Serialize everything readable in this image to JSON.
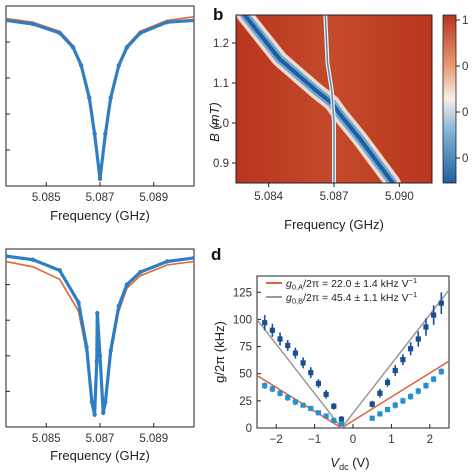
{
  "chart_data": [
    {
      "type": "line",
      "panel_label": "",
      "xlabel": "Frequency (GHz)",
      "ylabel": "",
      "xlim": [
        5.0835,
        5.0905
      ],
      "ylim": [
        0.0,
        1.0
      ],
      "x_ticks": [
        "5.085",
        "5.087",
        "5.089"
      ],
      "series": [
        {
          "color": "#e0633a",
          "x": [
            5.0835,
            5.0845,
            5.0855,
            5.086,
            5.0863,
            5.0866,
            5.0868,
            5.087,
            5.0872,
            5.0874,
            5.0877,
            5.088,
            5.0885,
            5.0895,
            5.0905
          ],
          "y": [
            0.93,
            0.91,
            0.86,
            0.78,
            0.68,
            0.5,
            0.3,
            0.05,
            0.3,
            0.5,
            0.68,
            0.78,
            0.86,
            0.92,
            0.94
          ]
        },
        {
          "color": "#2e7ec4",
          "x": [
            5.0835,
            5.0845,
            5.0855,
            5.086,
            5.0863,
            5.0866,
            5.0868,
            5.087,
            5.0872,
            5.0874,
            5.0877,
            5.088,
            5.0885,
            5.0895,
            5.0905
          ],
          "y": [
            0.92,
            0.9,
            0.85,
            0.77,
            0.67,
            0.49,
            0.29,
            0.04,
            0.29,
            0.49,
            0.67,
            0.77,
            0.85,
            0.91,
            0.92
          ]
        }
      ]
    },
    {
      "type": "heatmap",
      "panel_label": "b",
      "xlabel": "Frequency (GHz)",
      "ylabel": "B (mT)",
      "xlim": [
        5.0825,
        5.0915
      ],
      "ylim": [
        0.85,
        1.27
      ],
      "x_ticks": [
        "5.084",
        "5.087",
        "5.090"
      ],
      "y_ticks": [
        "0.9",
        "1.0",
        "1.1",
        "1.2"
      ],
      "colorbar_ticks": [
        "1",
        "0",
        "0",
        "0"
      ],
      "colors": {
        "high": "#b8321f",
        "mid": "#f6efe8",
        "low": "#1f5f9f"
      },
      "branches": [
        {
          "name": "",
          "points": [
            [
              5.0829,
              1.27
            ],
            [
              5.0845,
              1.16
            ],
            [
              5.0862,
              1.08
            ],
            [
              5.0869,
              1.05
            ],
            [
              5.0873,
              1.02
            ],
            [
              5.0882,
              0.96
            ],
            [
              5.0897,
              0.85
            ]
          ]
        },
        {
          "name": "",
          "points": [
            [
              5.0866,
              1.27
            ],
            [
              5.0867,
              1.15
            ],
            [
              5.0869,
              1.08
            ],
            [
              5.087,
              1.0
            ],
            [
              5.087,
              0.85
            ]
          ]
        }
      ]
    },
    {
      "type": "line",
      "panel_label": "",
      "xlabel": "Frequency (GHz)",
      "ylabel": "",
      "xlim": [
        5.0835,
        5.0905
      ],
      "ylim": [
        0.0,
        1.0
      ],
      "x_ticks": [
        "5.085",
        "5.087",
        "5.089"
      ],
      "series": [
        {
          "color": "#e0633a",
          "x": [
            5.0835,
            5.0845,
            5.0855,
            5.0862,
            5.0865,
            5.0867,
            5.0868,
            5.08688,
            5.0869,
            5.087,
            5.08712,
            5.0872,
            5.0874,
            5.0877,
            5.088,
            5.0885,
            5.0895,
            5.0905
          ],
          "y": [
            0.93,
            0.9,
            0.83,
            0.65,
            0.42,
            0.12,
            0.06,
            0.35,
            0.62,
            0.38,
            0.07,
            0.12,
            0.4,
            0.65,
            0.78,
            0.85,
            0.91,
            0.93
          ]
        },
        {
          "color": "#2e7ec4",
          "x": [
            5.0835,
            5.0845,
            5.0855,
            5.0862,
            5.0865,
            5.0867,
            5.0868,
            5.08688,
            5.0869,
            5.087,
            5.08712,
            5.0872,
            5.0874,
            5.0877,
            5.088,
            5.0885,
            5.0895,
            5.0905
          ],
          "y": [
            0.96,
            0.94,
            0.88,
            0.7,
            0.45,
            0.14,
            0.07,
            0.37,
            0.64,
            0.4,
            0.08,
            0.14,
            0.43,
            0.68,
            0.8,
            0.87,
            0.93,
            0.95
          ]
        }
      ]
    },
    {
      "type": "scatter",
      "panel_label": "d",
      "xlabel": "V",
      "xlabel_sub": "dc",
      "xlabel_unit": " (V)",
      "ylabel": "g/2π (kHz)",
      "xlim": [
        -2.5,
        2.5
      ],
      "ylim": [
        0,
        140
      ],
      "x_ticks": [
        "−2",
        "−1",
        "0",
        "1",
        "2"
      ],
      "y_ticks": [
        "0",
        "25",
        "50",
        "75",
        "100",
        "125"
      ],
      "legend": [
        {
          "prefix": "g",
          "sub": "0,A",
          "text": "/2π = 22.0 ± 1.4 kHz V",
          "sup": "−1",
          "color": "#e0633a"
        },
        {
          "prefix": "g",
          "sub": "0,B",
          "text": "/2π = 45.4 ± 1.1 kHz V",
          "sup": "−1",
          "color": "#999999"
        }
      ],
      "series": [
        {
          "color": "#1a4f8f",
          "x": [
            -2.3,
            -2.1,
            -1.9,
            -1.7,
            -1.5,
            -1.3,
            -1.1,
            -0.9,
            -0.7,
            -0.5,
            -0.3,
            0.5,
            0.7,
            0.9,
            1.1,
            1.3,
            1.5,
            1.7,
            1.9,
            2.1,
            2.3
          ],
          "y": [
            97,
            90,
            82,
            76,
            69,
            60,
            51,
            41,
            31,
            20,
            8,
            22,
            32,
            42,
            53,
            63,
            73,
            82,
            93,
            104,
            115
          ],
          "err": [
            7,
            6,
            6,
            5,
            5,
            5,
            5,
            4,
            4,
            3,
            3,
            3,
            4,
            4,
            5,
            5,
            6,
            7,
            8,
            9,
            10
          ]
        },
        {
          "color": "#2a8fd0",
          "x": [
            -2.3,
            -2.1,
            -1.9,
            -1.7,
            -1.5,
            -1.3,
            -1.1,
            -0.9,
            -0.7,
            -0.5,
            -0.3,
            0.5,
            0.7,
            0.9,
            1.1,
            1.3,
            1.5,
            1.7,
            1.9,
            2.1,
            2.3
          ],
          "y": [
            39,
            36,
            32,
            28,
            24,
            21,
            18,
            14,
            11,
            7,
            4,
            9,
            13,
            17,
            21,
            25,
            29,
            34,
            39,
            45,
            52
          ],
          "err": [
            3,
            3,
            3,
            3,
            3,
            2,
            2,
            2,
            2,
            2,
            2,
            2,
            2,
            2,
            3,
            3,
            3,
            3,
            3,
            3,
            3
          ]
        }
      ]
    }
  ]
}
